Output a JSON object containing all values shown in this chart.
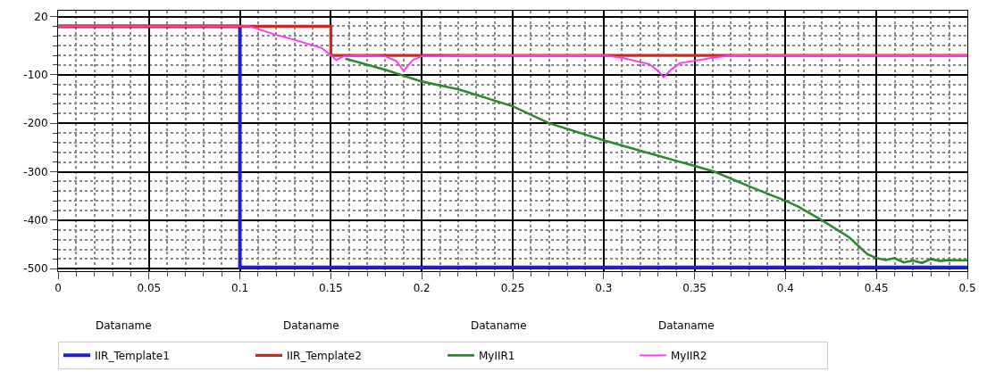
{
  "chart_data": {
    "type": "line",
    "xlim": [
      0,
      0.5
    ],
    "ylim": [
      -505,
      32
    ],
    "xticks": [
      0,
      0.05,
      0.1,
      0.15,
      0.2,
      0.25,
      0.3,
      0.35,
      0.4,
      0.45,
      0.5
    ],
    "yticks": [
      20,
      -100,
      -200,
      -300,
      -400,
      -500
    ],
    "grid": true,
    "legend": "bottom",
    "marker": "none",
    "line_style": "solid",
    "annotations": [
      "Dataname",
      "Dataname",
      "Dataname",
      "Dataname"
    ],
    "series": [
      {
        "name": "IIR_Template1",
        "color": "#1f1fd0",
        "x": [
          0,
          0.1,
          0.1,
          0.5
        ],
        "values": [
          0,
          0,
          -497,
          -497
        ]
      },
      {
        "name": "IIR_Template2",
        "color": "#d02a1a",
        "x": [
          0,
          0.15,
          0.15,
          0.5
        ],
        "values": [
          0,
          0,
          -60,
          -60
        ]
      },
      {
        "name": "MyIIR1",
        "color": "#2a8a2a",
        "x": [
          0.158,
          0.18,
          0.2,
          0.22,
          0.25,
          0.27,
          0.3,
          0.325,
          0.35,
          0.361,
          0.38,
          0.4,
          0.407,
          0.42,
          0.435,
          0.445,
          0.45,
          0.455,
          0.46,
          0.465,
          0.47,
          0.475,
          0.48,
          0.485,
          0.49,
          0.5
        ],
        "values": [
          -67,
          -90,
          -114,
          -130,
          -165,
          -200,
          -235,
          -262,
          -288,
          -300,
          -330,
          -360,
          -372,
          -400,
          -435,
          -470,
          -478,
          -482,
          -478,
          -487,
          -483,
          -488,
          -480,
          -484,
          -482,
          -483
        ]
      },
      {
        "name": "MyIIR2",
        "color": "#ff33ff",
        "x": [
          0,
          0.105,
          0.12,
          0.13,
          0.145,
          0.15,
          0.153,
          0.157,
          0.165,
          0.18,
          0.186,
          0.19,
          0.195,
          0.2,
          0.22,
          0.3,
          0.31,
          0.325,
          0.33,
          0.333,
          0.337,
          0.342,
          0.36,
          0.37,
          0.5
        ],
        "values": [
          0,
          0,
          -18,
          -28,
          -45,
          -60,
          -70,
          -62,
          -60,
          -62,
          -72,
          -92,
          -70,
          -62,
          -60,
          -60,
          -65,
          -78,
          -92,
          -105,
          -90,
          -76,
          -65,
          -60,
          -60
        ]
      }
    ]
  }
}
